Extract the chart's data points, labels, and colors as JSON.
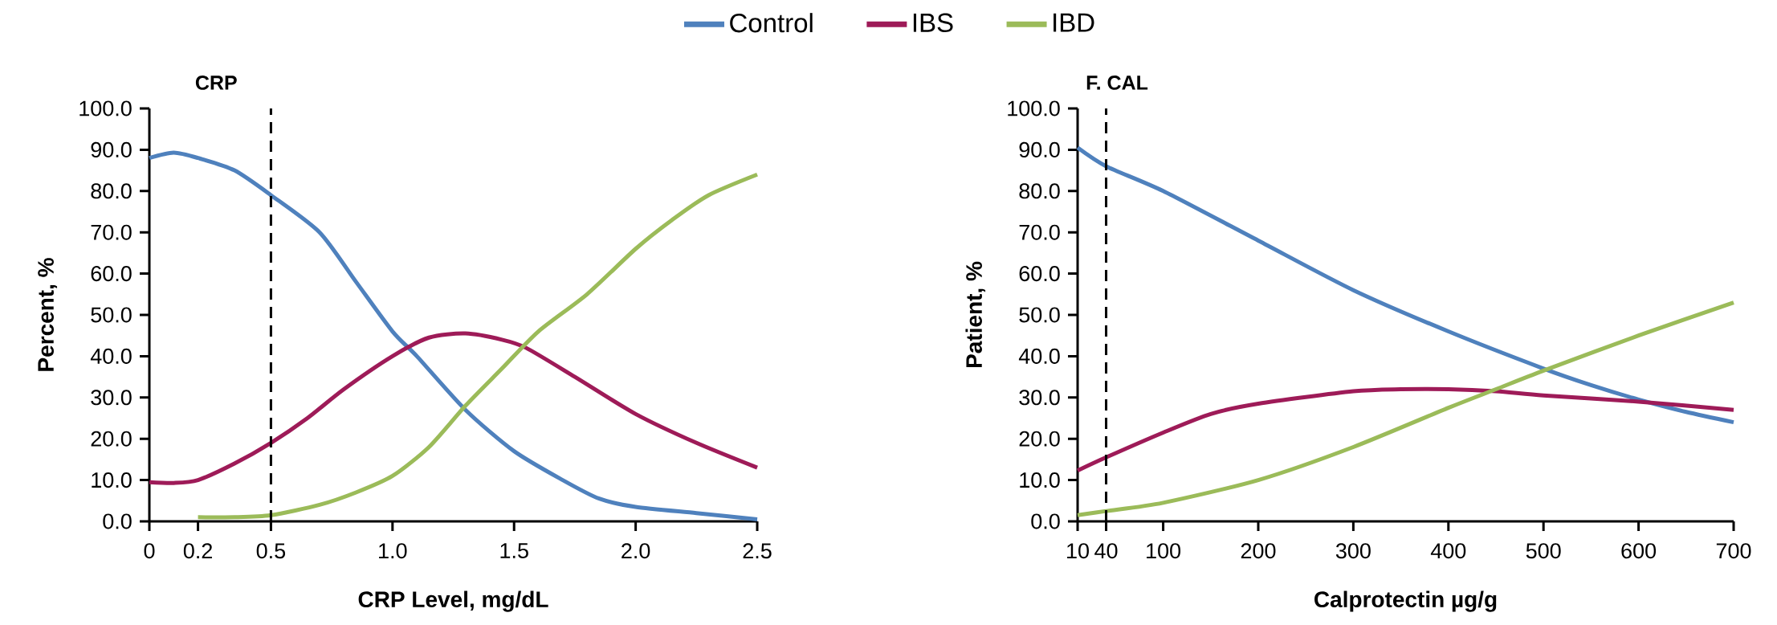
{
  "chart_data": [
    {
      "type": "line",
      "title": "CRP",
      "xlabel": "CRP Level, mg/dL",
      "ylabel": "Percent, %",
      "legend": "top",
      "xlim": [
        0,
        2.5
      ],
      "ylim": [
        0,
        100
      ],
      "xticks": [
        0,
        0.2,
        0.5,
        {
          "value": 1,
          "label": "1.0"
        },
        1.5,
        {
          "value": 2,
          "label": "2.0"
        },
        2.5
      ],
      "yticks": [
        {
          "value": 0,
          "label": "0.0"
        },
        {
          "value": 10,
          "label": "10.0"
        },
        {
          "value": 20,
          "label": "20.0"
        },
        {
          "value": 30,
          "label": "30.0"
        },
        {
          "value": 40,
          "label": "40.0"
        },
        {
          "value": 50,
          "label": "50.0"
        },
        {
          "value": 60,
          "label": "60.0"
        },
        {
          "value": 70,
          "label": "70.0"
        },
        {
          "value": 80,
          "label": "80.0"
        },
        {
          "value": 90,
          "label": "90.0"
        },
        {
          "value": 100,
          "label": "100.0"
        }
      ],
      "ref_lines": [
        {
          "axis": "x",
          "value": 0.5,
          "color": "#000000",
          "line_style": "dashed"
        }
      ],
      "series": [
        {
          "name": "Control",
          "color": "#4f81bd",
          "x": [
            0,
            0.1,
            0.2,
            0.35,
            0.5,
            0.7,
            0.85,
            1.0,
            1.1,
            1.3,
            1.5,
            1.7,
            1.85,
            2.0,
            2.25,
            2.5
          ],
          "values": [
            88,
            89.3,
            88,
            85,
            79,
            70,
            58,
            46,
            40,
            27,
            17,
            10,
            5.5,
            3.5,
            2,
            0.5
          ]
        },
        {
          "name": "IBS",
          "color": "#9e1b58",
          "x": [
            0,
            0.1,
            0.2,
            0.35,
            0.5,
            0.65,
            0.8,
            1.0,
            1.15,
            1.3,
            1.45,
            1.55,
            1.75,
            2.0,
            2.25,
            2.5
          ],
          "values": [
            9.5,
            9.3,
            10,
            14,
            19,
            25,
            32,
            40,
            44.5,
            45.5,
            44,
            42,
            35,
            26,
            19,
            13
          ]
        },
        {
          "name": "IBD",
          "color": "#9bbb59",
          "x": [
            0.2,
            0.35,
            0.5,
            0.7,
            0.85,
            1.0,
            1.15,
            1.3,
            1.45,
            1.6,
            1.8,
            2.0,
            2.15,
            2.3,
            2.5
          ],
          "values": [
            1,
            1,
            1.5,
            4,
            7,
            11,
            18,
            28,
            37,
            46,
            55,
            66,
            73,
            79,
            84
          ]
        }
      ]
    },
    {
      "type": "line",
      "title": "F. CAL",
      "xlabel": "Calprotectin µg/g",
      "ylabel": "Patient, %",
      "xlim": [
        10,
        700
      ],
      "ylim": [
        0,
        100
      ],
      "xticks": [
        10,
        40,
        100,
        200,
        300,
        400,
        500,
        600,
        700
      ],
      "yticks": [
        {
          "value": 0,
          "label": "0.0"
        },
        {
          "value": 10,
          "label": "10.0"
        },
        {
          "value": 20,
          "label": "20.0"
        },
        {
          "value": 30,
          "label": "30.0"
        },
        {
          "value": 40,
          "label": "40.0"
        },
        {
          "value": 50,
          "label": "50.0"
        },
        {
          "value": 60,
          "label": "60.0"
        },
        {
          "value": 70,
          "label": "70.0"
        },
        {
          "value": 80,
          "label": "80.0"
        },
        {
          "value": 90,
          "label": "90.0"
        },
        {
          "value": 100,
          "label": "100.0"
        }
      ],
      "ref_lines": [
        {
          "axis": "x",
          "value": 40,
          "color": "#000000",
          "line_style": "dashed"
        }
      ],
      "series": [
        {
          "color": "#4f81bd",
          "x": [
            10,
            40,
            100,
            200,
            300,
            400,
            500,
            550,
            600,
            650,
            700
          ],
          "values": [
            90.5,
            86,
            80,
            68,
            56,
            46,
            37,
            33,
            29.5,
            26.5,
            24
          ]
        },
        {
          "color": "#9e1b58",
          "x": [
            10,
            40,
            100,
            150,
            200,
            300,
            350,
            400,
            450,
            500,
            600,
            700
          ],
          "values": [
            12.3,
            15.5,
            21.5,
            26,
            28.5,
            31.5,
            32,
            32,
            31.5,
            30.5,
            29,
            27
          ]
        },
        {
          "color": "#9bbb59",
          "x": [
            10,
            40,
            100,
            200,
            300,
            400,
            450,
            500,
            600,
            700
          ],
          "values": [
            1.5,
            2.5,
            4.5,
            10,
            18,
            27.5,
            32,
            36.5,
            45,
            53
          ]
        }
      ]
    }
  ]
}
